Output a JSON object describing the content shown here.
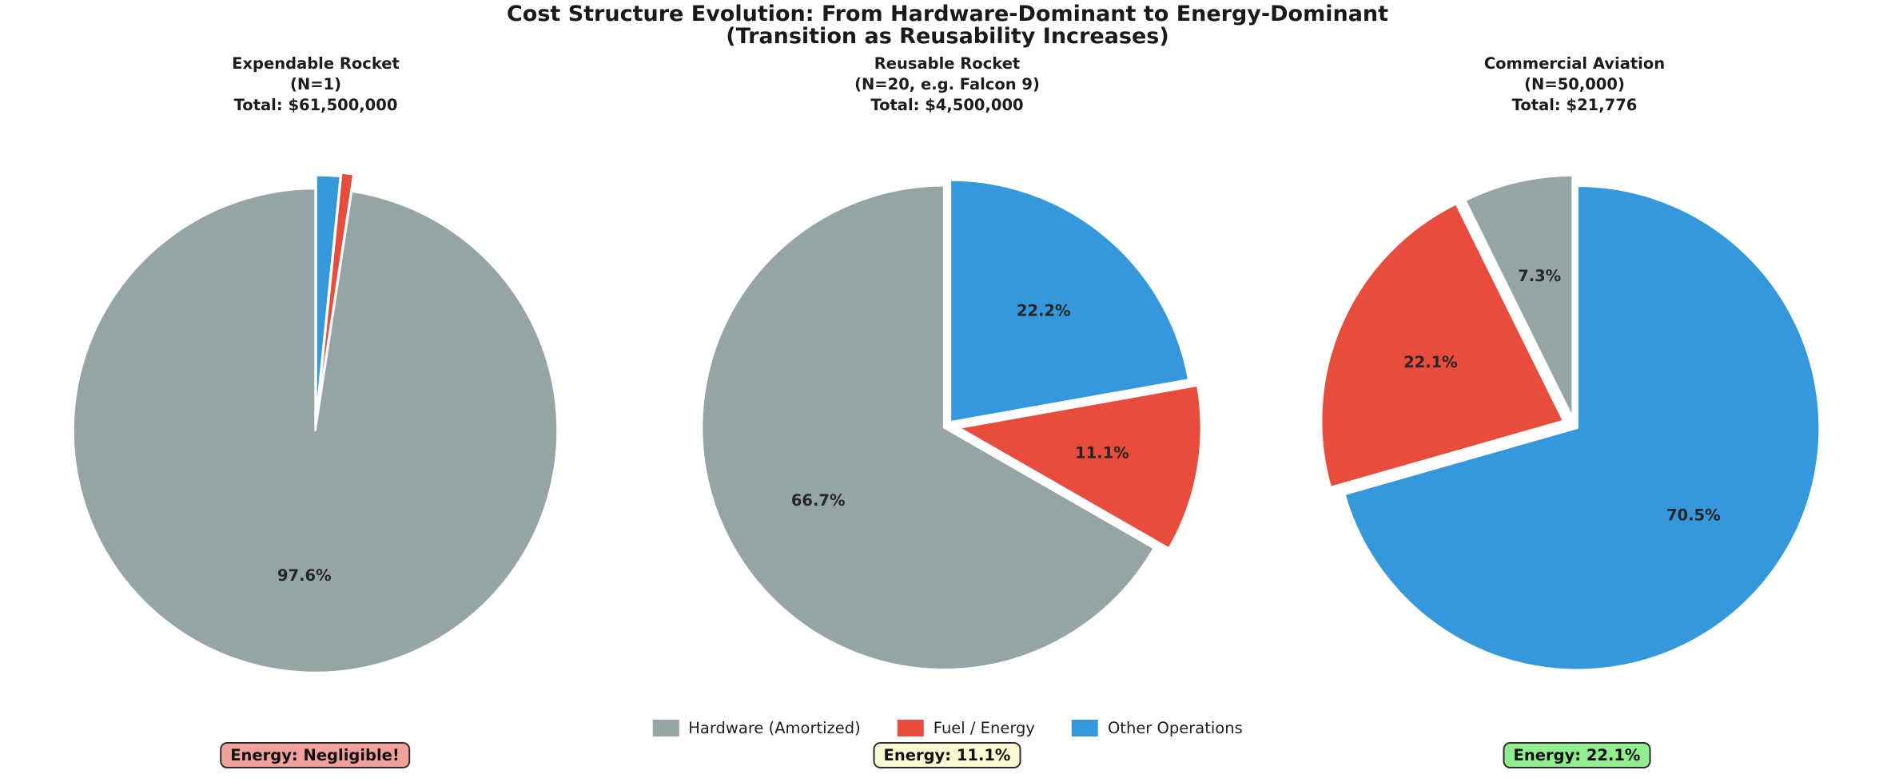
{
  "figure_title": {
    "line1": "Cost Structure Evolution: From Hardware-Dominant to Energy-Dominant",
    "line2": "(Transition as Reusability Increases)"
  },
  "legend": [
    {
      "label": "Hardware (Amortized)",
      "color": "#95a5a6"
    },
    {
      "label": "Fuel / Energy",
      "color": "#e74c3c"
    },
    {
      "label": "Other Operations",
      "color": "#3498db"
    }
  ],
  "chart_data": [
    {
      "type": "pie",
      "title_lines": [
        "Expendable Rocket",
        "(N=1)",
        "Total: $61,500,000"
      ],
      "categories": [
        "Hardware (Amortized)",
        "Fuel / Energy",
        "Other Operations"
      ],
      "values_pct": [
        97.6,
        0.8,
        1.6
      ],
      "pct_labels": [
        "97.6%",
        "",
        ""
      ],
      "colors": [
        "#95a5a6",
        "#e74c3c",
        "#3498db"
      ],
      "explode": [
        0.02,
        0.05,
        0.035
      ],
      "start_angle": 90,
      "counterclock": true,
      "pct_distance": 0.6,
      "annotation": {
        "text": "Energy: Negligible!",
        "bg": "#f1a19c",
        "border": "#2d2d2d"
      }
    },
    {
      "type": "pie",
      "title_lines": [
        "Reusable Rocket",
        "(N=20, e.g. Falcon 9)",
        "Total: $4,500,000"
      ],
      "categories": [
        "Hardware (Amortized)",
        "Fuel / Energy",
        "Other Operations"
      ],
      "values_pct": [
        66.7,
        11.1,
        22.2
      ],
      "pct_labels": [
        "66.7%",
        "11.1%",
        "22.2%"
      ],
      "colors": [
        "#95a5a6",
        "#e74c3c",
        "#3498db"
      ],
      "explode": [
        0.015,
        0.05,
        0.02
      ],
      "start_angle": 90,
      "counterclock": true,
      "pct_distance": 0.6,
      "annotation": {
        "text": "Energy: 11.1%",
        "bg": "#fafad2",
        "border": "#2d2d2d"
      }
    },
    {
      "type": "pie",
      "title_lines": [
        "Commercial Aviation",
        "(N=50,000)",
        "Total: $21,776"
      ],
      "categories": [
        "Hardware (Amortized)",
        "Fuel / Energy",
        "Other Operations"
      ],
      "values_pct": [
        7.3,
        22.1,
        70.5
      ],
      "pct_labels": [
        "7.3%",
        "22.1%",
        "70.5%"
      ],
      "colors": [
        "#95a5a6",
        "#e74c3c",
        "#3498db"
      ],
      "explode": [
        0.035,
        0.05,
        0.015
      ],
      "start_angle": 90,
      "counterclock": true,
      "pct_distance": 0.6,
      "annotation": {
        "text": "Energy: 22.1%",
        "bg": "#90ee90",
        "border": "#2d2d2d"
      }
    }
  ]
}
